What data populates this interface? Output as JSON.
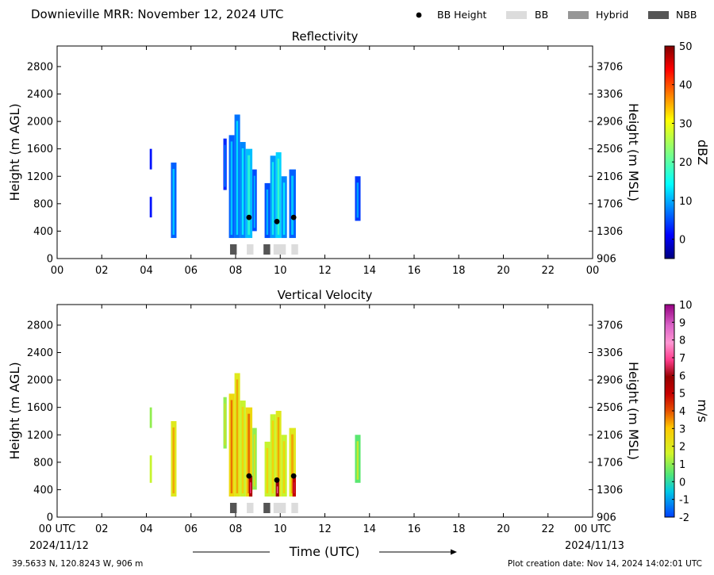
{
  "header": {
    "title": "Downieville MRR:  November 12, 2024 UTC"
  },
  "legend": {
    "placement": "top-right",
    "items": [
      {
        "label": "BB Height",
        "kind": "dot",
        "color": "#000000"
      },
      {
        "label": "BB",
        "kind": "swatch",
        "color": "#dcdcdc"
      },
      {
        "label": "Hybrid",
        "kind": "swatch",
        "color": "#969696"
      },
      {
        "label": "NBB",
        "kind": "swatch",
        "color": "#555555"
      }
    ]
  },
  "footer": {
    "location": "39.5633 N, 120.8243 W, 906 m",
    "created": "Plot creation date: Nov 14, 2024 14:02:01 UTC",
    "xlabel": "Time (UTC)",
    "date_left": "2024/11/12",
    "date_right": "2024/11/13"
  },
  "chart_data": [
    {
      "type": "heatmap",
      "title": "Reflectivity",
      "ylabel": "Height (m AGL)",
      "ylabel_right": "Height (m MSL)",
      "ylim": [
        0,
        3100
      ],
      "xlim": [
        0,
        24
      ],
      "yticks": [
        0,
        400,
        800,
        1200,
        1600,
        2000,
        2400,
        2800
      ],
      "ytick_labels_right": [
        "906",
        "1306",
        "1706",
        "2106",
        "2506",
        "2906",
        "3306",
        "3706"
      ],
      "xtick_labels": [
        "00",
        "02",
        "04",
        "06",
        "08",
        "10",
        "12",
        "14",
        "16",
        "18",
        "20",
        "22",
        "00"
      ],
      "colorbar": {
        "label": "dBZ",
        "range": [
          -5,
          50
        ],
        "ticks": [
          "0",
          "10",
          "20",
          "30",
          "40",
          "50"
        ],
        "tick_values": [
          0,
          10,
          20,
          30,
          40,
          50
        ]
      },
      "echoes": [
        {
          "t0": 4.15,
          "t1": 4.25,
          "h0": 1300,
          "h1": 1600,
          "value": 2
        },
        {
          "t0": 4.15,
          "t1": 4.25,
          "h0": 600,
          "h1": 900,
          "value": 2
        },
        {
          "t0": 5.1,
          "t1": 5.35,
          "h0": 300,
          "h1": 1400,
          "value": 6
        },
        {
          "t0": 7.45,
          "t1": 7.6,
          "h0": 1000,
          "h1": 1750,
          "value": 3
        },
        {
          "t0": 7.7,
          "t1": 7.95,
          "h0": 300,
          "h1": 1800,
          "value": 6
        },
        {
          "t0": 7.95,
          "t1": 8.2,
          "h0": 300,
          "h1": 2100,
          "value": 7
        },
        {
          "t0": 8.2,
          "t1": 8.45,
          "h0": 300,
          "h1": 1700,
          "value": 8
        },
        {
          "t0": 8.45,
          "t1": 8.75,
          "h0": 300,
          "h1": 1600,
          "value": 11
        },
        {
          "t0": 8.75,
          "t1": 8.95,
          "h0": 400,
          "h1": 1300,
          "value": 5
        },
        {
          "t0": 9.3,
          "t1": 9.55,
          "h0": 300,
          "h1": 1100,
          "value": 5
        },
        {
          "t0": 9.55,
          "t1": 9.8,
          "h0": 300,
          "h1": 1500,
          "value": 9
        },
        {
          "t0": 9.8,
          "t1": 10.05,
          "h0": 300,
          "h1": 1550,
          "value": 12
        },
        {
          "t0": 10.05,
          "t1": 10.3,
          "h0": 300,
          "h1": 1200,
          "value": 8
        },
        {
          "t0": 10.4,
          "t1": 10.7,
          "h0": 300,
          "h1": 1300,
          "value": 6
        },
        {
          "t0": 13.35,
          "t1": 13.6,
          "h0": 550,
          "h1": 1200,
          "value": 4
        }
      ],
      "bb_height": [
        {
          "t": 8.6,
          "h": 600
        },
        {
          "t": 9.85,
          "h": 540
        },
        {
          "t": 10.6,
          "h": 600
        }
      ],
      "bb_class": [
        {
          "t0": 7.75,
          "t1": 8.05,
          "class": "NBB"
        },
        {
          "t0": 8.5,
          "t1": 8.8,
          "class": "BB"
        },
        {
          "t0": 9.25,
          "t1": 9.55,
          "class": "NBB"
        },
        {
          "t0": 9.7,
          "t1": 10.25,
          "class": "BB"
        },
        {
          "t0": 10.5,
          "t1": 10.8,
          "class": "BB"
        }
      ]
    },
    {
      "type": "heatmap",
      "title": "Vertical Velocity",
      "ylabel": "Height (m AGL)",
      "ylabel_right": "Height (m MSL)",
      "ylim": [
        0,
        3100
      ],
      "xlim": [
        0,
        24
      ],
      "yticks": [
        0,
        400,
        800,
        1200,
        1600,
        2000,
        2400,
        2800
      ],
      "ytick_labels_right": [
        "906",
        "1306",
        "1706",
        "2106",
        "2506",
        "2906",
        "3306",
        "3706"
      ],
      "xtick_labels": [
        "00 UTC",
        "02",
        "04",
        "06",
        "08",
        "10",
        "12",
        "14",
        "16",
        "18",
        "20",
        "22",
        "00 UTC"
      ],
      "colorbar": {
        "label": "m/s",
        "range": [
          -2,
          10
        ],
        "ticks": [
          "-2",
          "-1",
          "0",
          "1",
          "2",
          "3",
          "4",
          "5",
          "6",
          "7",
          "8",
          "9",
          "10"
        ],
        "tick_values": [
          -2,
          -1,
          0,
          1,
          2,
          3,
          4,
          5,
          6,
          7,
          8,
          9,
          10
        ]
      },
      "echoes": [
        {
          "t0": 4.15,
          "t1": 4.25,
          "h0": 1300,
          "h1": 1600,
          "value": 1
        },
        {
          "t0": 4.15,
          "t1": 4.25,
          "h0": 500,
          "h1": 900,
          "value": 1.5
        },
        {
          "t0": 5.1,
          "t1": 5.35,
          "h0": 300,
          "h1": 1400,
          "value": 2
        },
        {
          "t0": 7.45,
          "t1": 7.6,
          "h0": 1000,
          "h1": 1750,
          "value": 1
        },
        {
          "t0": 7.7,
          "t1": 7.95,
          "h0": 300,
          "h1": 1800,
          "value": 2.5
        },
        {
          "t0": 7.95,
          "t1": 8.2,
          "h0": 300,
          "h1": 2100,
          "value": 2
        },
        {
          "t0": 8.2,
          "t1": 8.45,
          "h0": 300,
          "h1": 1700,
          "value": 1.5
        },
        {
          "t0": 8.45,
          "t1": 8.75,
          "h0": 300,
          "h1": 1600,
          "value": 2.5
        },
        {
          "t0": 8.75,
          "t1": 8.95,
          "h0": 400,
          "h1": 1300,
          "value": 1
        },
        {
          "t0": 9.3,
          "t1": 9.55,
          "h0": 300,
          "h1": 1100,
          "value": 1.5
        },
        {
          "t0": 9.55,
          "t1": 9.8,
          "h0": 300,
          "h1": 1500,
          "value": 1.5
        },
        {
          "t0": 9.8,
          "t1": 10.05,
          "h0": 300,
          "h1": 1550,
          "value": 2
        },
        {
          "t0": 10.05,
          "t1": 10.3,
          "h0": 300,
          "h1": 1200,
          "value": 1.5
        },
        {
          "t0": 10.4,
          "t1": 10.7,
          "h0": 300,
          "h1": 1300,
          "value": 2
        },
        {
          "t0": 13.35,
          "t1": 13.6,
          "h0": 500,
          "h1": 1200,
          "value": 0.5
        },
        {
          "t0": 8.6,
          "t1": 8.75,
          "h0": 300,
          "h1": 600,
          "value": 5.5
        },
        {
          "t0": 9.8,
          "t1": 9.95,
          "h0": 300,
          "h1": 540,
          "value": 6
        },
        {
          "t0": 10.55,
          "t1": 10.7,
          "h0": 300,
          "h1": 600,
          "value": 5
        }
      ],
      "bb_height": [
        {
          "t": 8.6,
          "h": 600
        },
        {
          "t": 9.85,
          "h": 540
        },
        {
          "t": 10.6,
          "h": 600
        }
      ],
      "bb_class": [
        {
          "t0": 7.75,
          "t1": 8.05,
          "class": "NBB"
        },
        {
          "t0": 8.5,
          "t1": 8.8,
          "class": "BB"
        },
        {
          "t0": 9.25,
          "t1": 9.55,
          "class": "NBB"
        },
        {
          "t0": 9.7,
          "t1": 10.25,
          "class": "BB"
        },
        {
          "t0": 10.5,
          "t1": 10.8,
          "class": "BB"
        }
      ]
    }
  ]
}
